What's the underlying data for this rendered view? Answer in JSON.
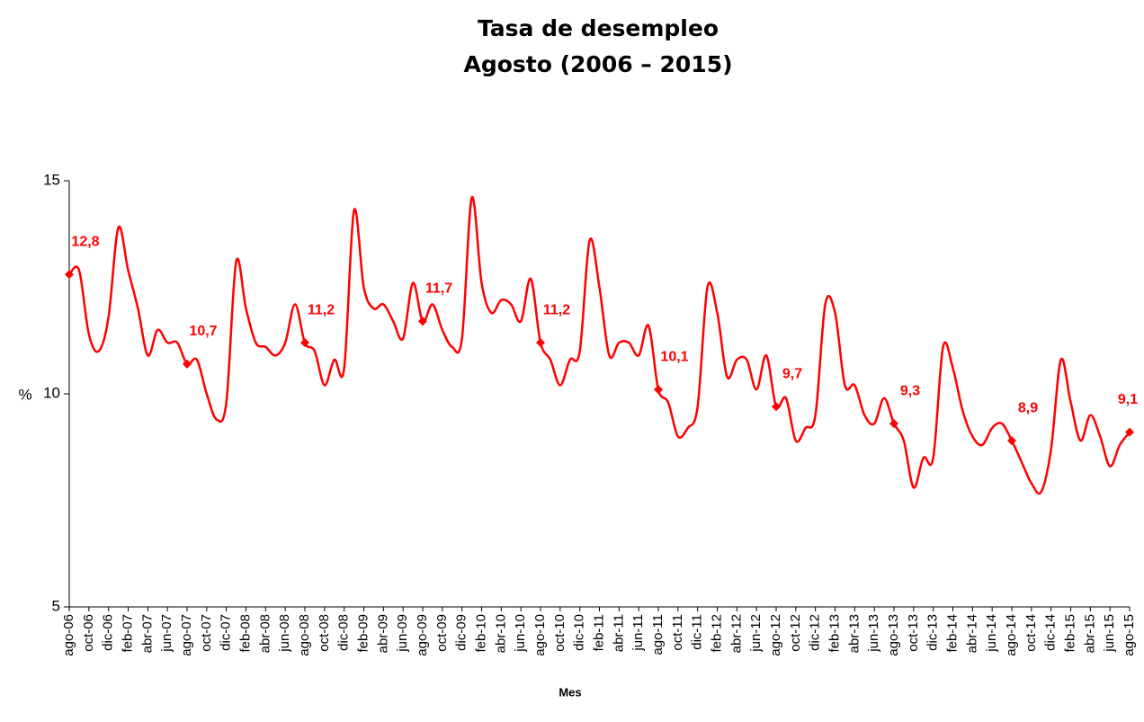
{
  "chart_data": {
    "type": "line",
    "title": "Tasa de desempleo",
    "subtitle": "Agosto (2006 – 2015)",
    "xlabel": "Mes",
    "ylabel": "%",
    "categories": [
      "ago-06",
      null,
      "oct-06",
      null,
      "dic-06",
      null,
      "feb-07",
      null,
      "abr-07",
      null,
      "jun-07",
      null,
      "ago-07",
      null,
      "oct-07",
      null,
      "dic-07",
      null,
      "feb-08",
      null,
      "abr-08",
      null,
      "jun-08",
      null,
      "ago-08",
      null,
      "oct-08",
      null,
      "dic-08",
      null,
      "feb-09",
      null,
      "abr-09",
      null,
      "jun-09",
      null,
      "ago-09",
      null,
      "oct-09",
      null,
      "dic-09",
      null,
      "feb-10",
      null,
      "abr-10",
      null,
      "jun-10",
      null,
      "ago-10",
      null,
      "oct-10",
      null,
      "dic-10",
      null,
      "feb-11",
      null,
      "abr-11",
      null,
      "jun-11",
      null,
      "ago-11",
      null,
      "oct-11",
      null,
      "dic-11",
      null,
      "feb-12",
      null,
      "abr-12",
      null,
      "jun-12",
      null,
      "ago-12",
      null,
      "oct-12",
      null,
      "dic-12",
      null,
      "feb-13",
      null,
      "abr-13",
      null,
      "jun-13",
      null,
      "ago-13",
      null,
      "oct-13",
      null,
      "dic-13",
      null,
      "feb-14",
      null,
      "abr-14",
      null,
      "jun-14",
      null,
      "ago-14",
      null,
      "oct-14",
      null,
      "dic-14",
      null,
      "feb-15",
      null,
      "abr-15",
      null,
      "jun-15",
      null,
      "ago-15"
    ],
    "series": [
      {
        "name": "Tasa de desempleo",
        "color": "#ff0000",
        "values": [
          12.8,
          12.9,
          11.4,
          11.0,
          11.8,
          13.9,
          12.9,
          12.0,
          10.9,
          11.5,
          11.2,
          11.2,
          10.7,
          10.8,
          10.0,
          9.4,
          9.8,
          13.1,
          12.0,
          11.2,
          11.1,
          10.9,
          11.2,
          12.1,
          11.2,
          11.0,
          10.2,
          10.8,
          10.6,
          14.3,
          12.5,
          12.0,
          12.1,
          11.7,
          11.3,
          12.6,
          11.7,
          12.1,
          11.5,
          11.1,
          11.3,
          14.6,
          12.6,
          11.9,
          12.2,
          12.1,
          11.7,
          12.7,
          11.2,
          10.8,
          10.2,
          10.8,
          11.0,
          13.6,
          12.5,
          10.9,
          11.2,
          11.2,
          10.9,
          11.6,
          10.1,
          9.8,
          9.0,
          9.2,
          9.7,
          12.5,
          11.9,
          10.4,
          10.8,
          10.8,
          10.1,
          10.9,
          9.7,
          9.9,
          8.9,
          9.2,
          9.5,
          12.1,
          11.9,
          10.2,
          10.2,
          9.5,
          9.3,
          9.9,
          9.3,
          8.9,
          7.8,
          8.5,
          8.5,
          11.1,
          10.6,
          9.6,
          9.0,
          8.8,
          9.2,
          9.3,
          8.9,
          8.4,
          7.9,
          7.7,
          8.7,
          10.8,
          9.8,
          8.9,
          9.5,
          9.0,
          8.3,
          8.8,
          9.1
        ],
        "value_labels": [
          "12,8",
          null,
          null,
          null,
          null,
          null,
          null,
          null,
          null,
          null,
          null,
          null,
          "10,7",
          null,
          null,
          null,
          null,
          null,
          null,
          null,
          null,
          null,
          null,
          null,
          "11,2",
          null,
          null,
          null,
          null,
          null,
          null,
          null,
          null,
          null,
          null,
          null,
          "11,7",
          null,
          null,
          null,
          null,
          null,
          null,
          null,
          null,
          null,
          null,
          null,
          "11,2",
          null,
          null,
          null,
          null,
          null,
          null,
          null,
          null,
          null,
          null,
          null,
          "10,1",
          null,
          null,
          null,
          null,
          null,
          null,
          null,
          null,
          null,
          null,
          null,
          "9,7",
          null,
          null,
          null,
          null,
          null,
          null,
          null,
          null,
          null,
          null,
          null,
          "9,3",
          null,
          null,
          null,
          null,
          null,
          null,
          null,
          null,
          null,
          null,
          null,
          "8,9",
          null,
          null,
          null,
          null,
          null,
          null,
          null,
          null,
          null,
          null,
          null,
          "9,1"
        ]
      }
    ],
    "ylim": [
      5,
      15
    ],
    "yticks": [
      5,
      10,
      15
    ]
  }
}
